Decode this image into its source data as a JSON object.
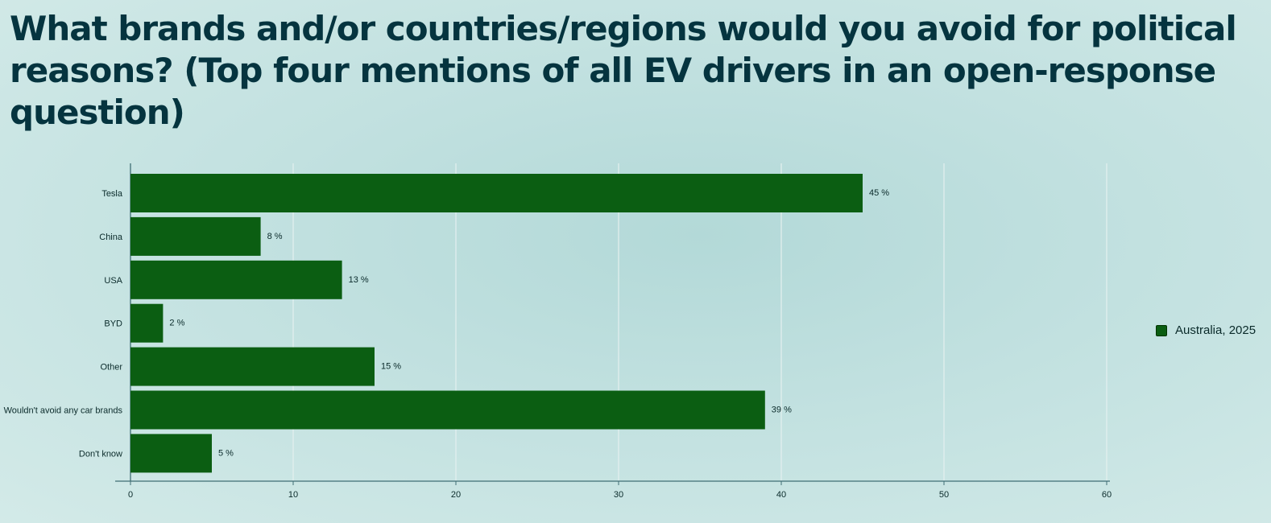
{
  "chart_data": {
    "type": "bar",
    "orientation": "horizontal",
    "title": "What brands and/or countries/regions would you avoid for political reasons? (Top four mentions of all EV drivers in an open-response question)",
    "categories": [
      "Tesla",
      "China",
      "USA",
      "BYD",
      "Other",
      "Wouldn't avoid any car brands",
      "Don't know"
    ],
    "series": [
      {
        "name": "Australia, 2025",
        "values": [
          45,
          8,
          13,
          2,
          15,
          39,
          5
        ],
        "labels": [
          "45 %",
          "8 %",
          "13 %",
          "2 %",
          "15 %",
          "39 %",
          "5 %"
        ],
        "color": "#0b5e12"
      }
    ],
    "xlim": [
      0,
      60
    ],
    "xticks": [
      "0",
      "10",
      "20",
      "30",
      "40",
      "50",
      "60"
    ],
    "grid": true,
    "legend_position": "right"
  },
  "colors": {
    "bar": "#0b5e12",
    "axis": "#3f6e74",
    "grid": "#e4f0ef",
    "text": "#0a2a2a",
    "title": "#05343f"
  }
}
